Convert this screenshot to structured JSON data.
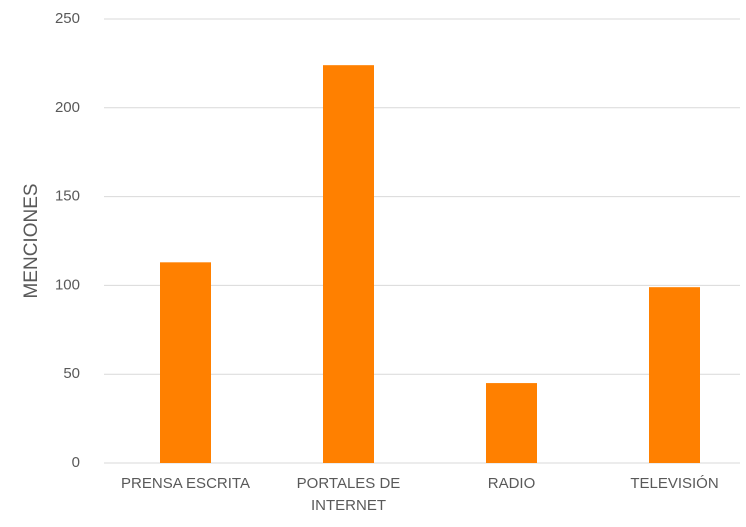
{
  "chart_data": {
    "type": "bar",
    "y_label": "MENCIONES",
    "categories": [
      "PRENSA ESCRITA",
      "PORTALES DE INTERNET",
      "RADIO",
      "TELEVISIÓN"
    ],
    "values": [
      113,
      224,
      45,
      99
    ],
    "color": "#ff8000",
    "ylim": [
      0,
      250
    ],
    "yticks": [
      0,
      50,
      100,
      150,
      200,
      250
    ],
    "grid": true
  }
}
